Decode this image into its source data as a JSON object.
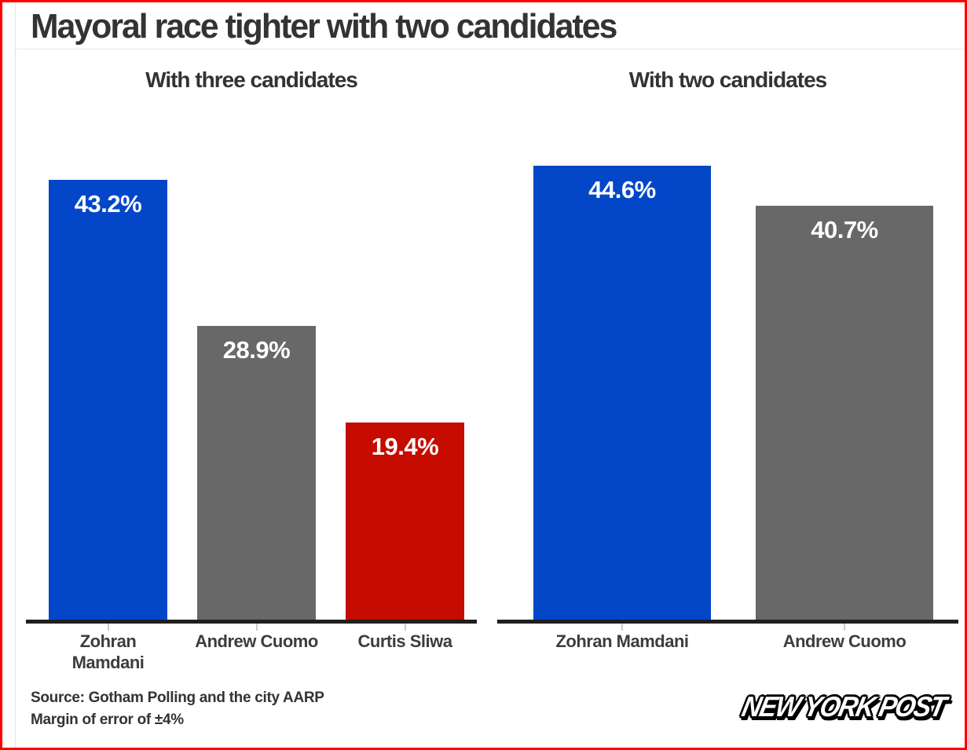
{
  "page": {
    "title": "Mayoral race tighter with two candidates",
    "source_line1": "Source: Gotham Polling and the city AARP",
    "source_line2": "Margin of error of ±4%",
    "logo_text": "NEW YORK POST"
  },
  "colors": {
    "border": "#fe0000",
    "background": "#ffffff",
    "blue": "#0347c8",
    "gray": "#686868",
    "red": "#c60b00",
    "axis": "#1f1f1f",
    "tick": "#cccccc",
    "divider": "#e9e9e9",
    "rule": "#e3e3e3",
    "title_text": "#333333",
    "label_text": "#3d3d3d",
    "source_text": "#333333",
    "value_text": "#ffffff"
  },
  "chart_data": [
    {
      "type": "bar",
      "title": "With three candidates",
      "categories": [
        "Zohran Mamdani",
        "Andrew Cuomo",
        "Curtis Sliwa"
      ],
      "category_lines": [
        [
          "Zohran",
          "Mamdani"
        ],
        [
          "Andrew Cuomo"
        ],
        [
          "Curtis Sliwa"
        ]
      ],
      "values": [
        43.2,
        28.9,
        19.4
      ],
      "value_labels": [
        "43.2%",
        "28.9%",
        "19.4%"
      ],
      "bar_colors": [
        "blue",
        "gray",
        "red"
      ],
      "xlabel": "",
      "ylabel": "",
      "ylim": [
        0,
        47
      ],
      "grid": false,
      "legend": false
    },
    {
      "type": "bar",
      "title": "With two candidates",
      "categories": [
        "Zohran Mamdani",
        "Andrew Cuomo"
      ],
      "category_lines": [
        [
          "Zohran Mamdani"
        ],
        [
          "Andrew Cuomo"
        ]
      ],
      "values": [
        44.6,
        40.7
      ],
      "value_labels": [
        "44.6%",
        "40.7%"
      ],
      "bar_colors": [
        "blue",
        "gray"
      ],
      "xlabel": "",
      "ylabel": "",
      "ylim": [
        0,
        47
      ],
      "grid": false,
      "legend": false
    }
  ]
}
